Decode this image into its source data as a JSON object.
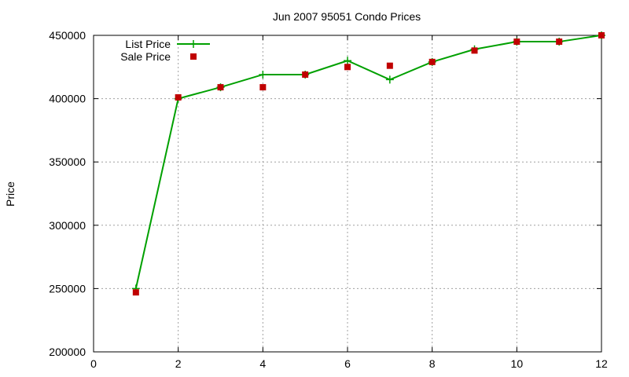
{
  "chart_data": {
    "type": "line",
    "title": "Jun 2007 95051 Condo Prices",
    "xlabel": "",
    "ylabel": "Price",
    "xlim": [
      0,
      12
    ],
    "ylim": [
      200000,
      450000
    ],
    "x_ticks": [
      "0",
      "2",
      "4",
      "6",
      "8",
      "10",
      "12"
    ],
    "y_ticks": [
      "200000",
      "250000",
      "300000",
      "350000",
      "400000",
      "450000"
    ],
    "grid": true,
    "legend_position": "top-left",
    "series": [
      {
        "name": "List Price",
        "style": "line+marker",
        "marker": "plus",
        "color": "#00a000",
        "x": [
          1,
          2,
          3,
          4,
          5,
          6,
          7,
          8,
          9,
          10,
          11,
          12
        ],
        "values": [
          250000,
          400000,
          409000,
          419000,
          419000,
          430000,
          415000,
          429000,
          439000,
          445000,
          445000,
          450000
        ]
      },
      {
        "name": "Sale Price",
        "style": "points",
        "marker": "square",
        "color": "#c00000",
        "x": [
          1,
          2,
          3,
          4,
          5,
          6,
          7,
          8,
          9,
          10,
          11,
          12
        ],
        "values": [
          247000,
          401000,
          409000,
          409000,
          419000,
          425000,
          426000,
          429000,
          438000,
          445000,
          445000,
          450000
        ]
      }
    ]
  }
}
